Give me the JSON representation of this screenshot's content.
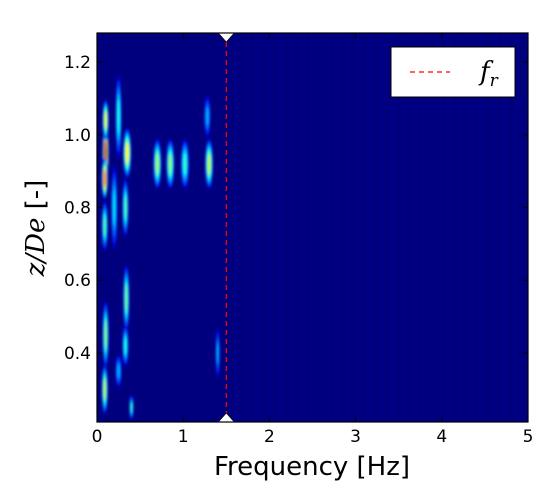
{
  "chart_data": {
    "type": "heatmap",
    "title": "",
    "xlabel": "Frequency [Hz]",
    "ylabel_math": "z/De",
    "ylabel_unit": " [-]",
    "xlim": [
      0,
      5
    ],
    "ylim": [
      0.21,
      1.28
    ],
    "x_ticks": [
      0,
      1,
      2,
      3,
      4,
      5
    ],
    "x_tick_labels": [
      "0",
      "1",
      "2",
      "3",
      "4",
      "5"
    ],
    "y_ticks": [
      0.4,
      0.6,
      0.8,
      1.0,
      1.2
    ],
    "y_tick_labels": [
      "0.4",
      "0.6",
      "0.8",
      "1.0",
      "1.2"
    ],
    "colormap": "jet",
    "background_color": "#00007f",
    "reference_line": {
      "name": "f",
      "subscript": "r",
      "x": 1.5,
      "color": "#ff0000",
      "style": "dashed"
    },
    "legend_position": "top-right",
    "features": [
      {
        "x": 0.1,
        "y": 0.95,
        "value": 0.95,
        "sx": 0.03,
        "sy": 0.07
      },
      {
        "x": 0.09,
        "y": 0.88,
        "value": 0.78,
        "sx": 0.03,
        "sy": 0.05
      },
      {
        "x": 0.1,
        "y": 1.04,
        "value": 0.6,
        "sx": 0.03,
        "sy": 0.05
      },
      {
        "x": 0.09,
        "y": 0.75,
        "value": 0.45,
        "sx": 0.03,
        "sy": 0.06
      },
      {
        "x": 0.1,
        "y": 0.45,
        "value": 0.5,
        "sx": 0.03,
        "sy": 0.08
      },
      {
        "x": 0.09,
        "y": 0.3,
        "value": 0.55,
        "sx": 0.03,
        "sy": 0.06
      },
      {
        "x": 0.2,
        "y": 0.8,
        "value": 0.35,
        "sx": 0.03,
        "sy": 0.1
      },
      {
        "x": 0.25,
        "y": 1.05,
        "value": 0.4,
        "sx": 0.03,
        "sy": 0.1
      },
      {
        "x": 0.35,
        "y": 0.95,
        "value": 0.62,
        "sx": 0.04,
        "sy": 0.06
      },
      {
        "x": 0.33,
        "y": 0.8,
        "value": 0.45,
        "sx": 0.03,
        "sy": 0.07
      },
      {
        "x": 0.34,
        "y": 0.55,
        "value": 0.48,
        "sx": 0.03,
        "sy": 0.08
      },
      {
        "x": 0.33,
        "y": 0.42,
        "value": 0.4,
        "sx": 0.03,
        "sy": 0.05
      },
      {
        "x": 0.4,
        "y": 0.25,
        "value": 0.42,
        "sx": 0.02,
        "sy": 0.03
      },
      {
        "x": 0.7,
        "y": 0.92,
        "value": 0.52,
        "sx": 0.04,
        "sy": 0.06
      },
      {
        "x": 0.85,
        "y": 0.92,
        "value": 0.5,
        "sx": 0.04,
        "sy": 0.06
      },
      {
        "x": 1.02,
        "y": 0.92,
        "value": 0.42,
        "sx": 0.04,
        "sy": 0.06
      },
      {
        "x": 1.3,
        "y": 0.92,
        "value": 0.55,
        "sx": 0.04,
        "sy": 0.06
      },
      {
        "x": 1.28,
        "y": 1.05,
        "value": 0.3,
        "sx": 0.03,
        "sy": 0.05
      },
      {
        "x": 1.4,
        "y": 0.4,
        "value": 0.3,
        "sx": 0.02,
        "sy": 0.06
      },
      {
        "x": 0.25,
        "y": 0.35,
        "value": 0.3,
        "sx": 0.03,
        "sy": 0.04
      }
    ]
  }
}
